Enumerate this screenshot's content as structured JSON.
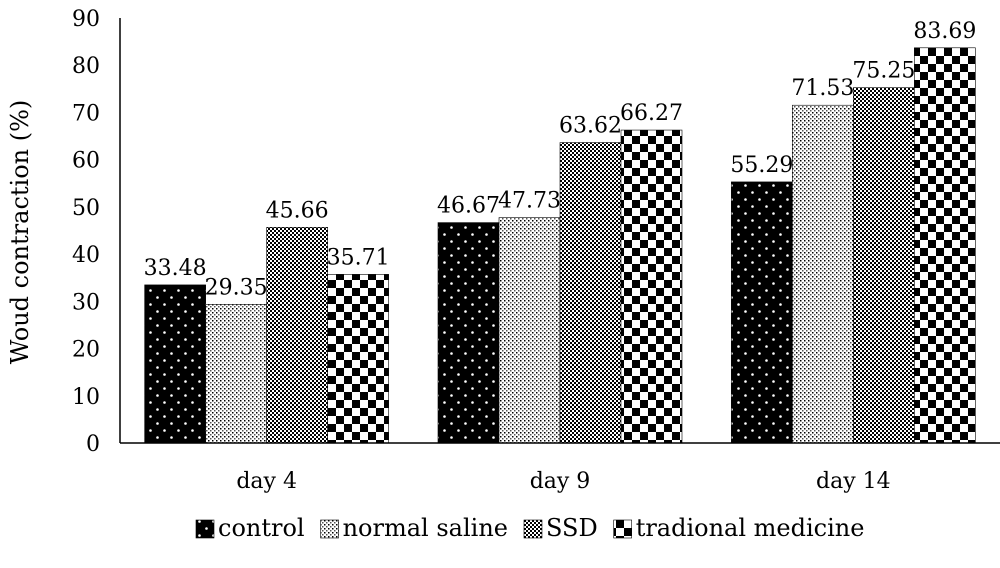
{
  "chart_data": {
    "type": "bar",
    "title": "",
    "xlabel": "",
    "ylabel": "Woud contraction (%)",
    "ylim": [
      0,
      90
    ],
    "yticks": [
      "0",
      "10",
      "20",
      "30",
      "40",
      "50",
      "60",
      "70",
      "80",
      "90"
    ],
    "categories": [
      "day 4",
      "day 9",
      "day 14"
    ],
    "grid": false,
    "legend_position": "bottom",
    "series": [
      {
        "name": "control",
        "pattern": "white-dots-on-black",
        "values": [
          33.48,
          46.67,
          55.29
        ],
        "labels": [
          "33.48",
          "46.67",
          "55.29"
        ]
      },
      {
        "name": "normal saline",
        "pattern": "fine-dots-light",
        "values": [
          29.35,
          47.73,
          71.53
        ],
        "labels": [
          "29.35",
          "47.73",
          "71.53"
        ]
      },
      {
        "name": "SSD",
        "pattern": "dense-checker-gray",
        "values": [
          45.66,
          63.62,
          75.25
        ],
        "labels": [
          "45.66",
          "63.62",
          "75.25"
        ]
      },
      {
        "name": "tradional medicine",
        "pattern": "large-checkerboard",
        "values": [
          35.71,
          66.27,
          83.69
        ],
        "labels": [
          "35.71",
          "66.27",
          "83.69"
        ]
      }
    ]
  }
}
